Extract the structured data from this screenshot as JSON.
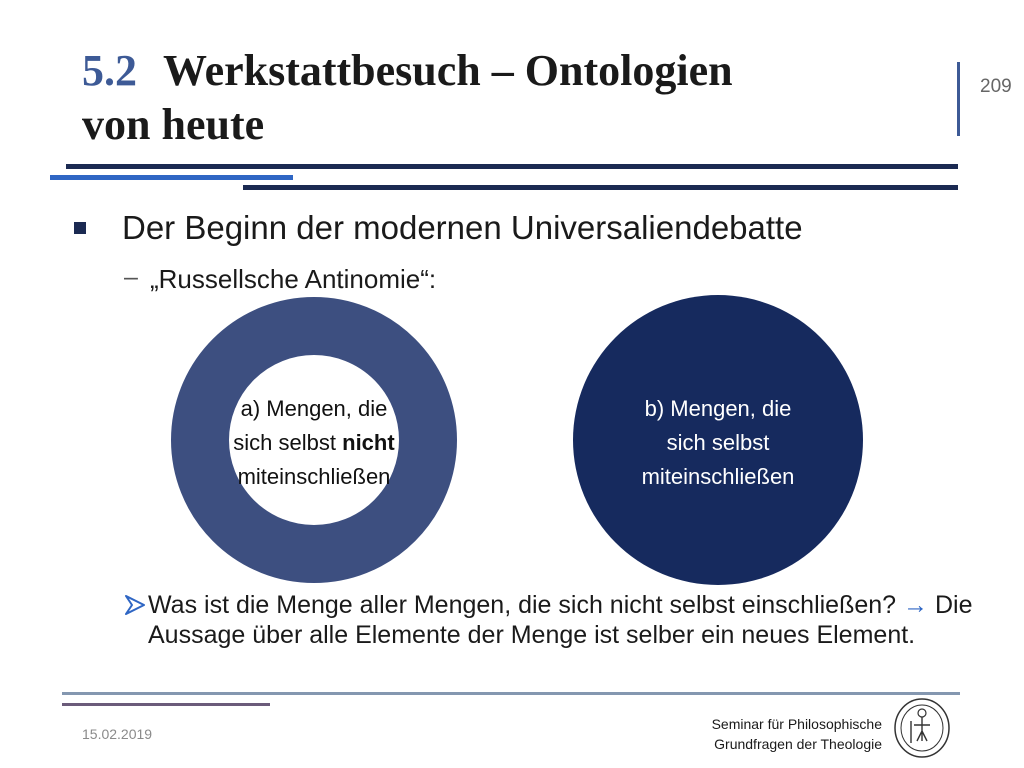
{
  "slide": {
    "section_number": "5.2",
    "title_rest_line1": "Werkstattbesuch – Ontologien",
    "title_line2": "von heute",
    "page_number": "209"
  },
  "content": {
    "bullet1": "Der Beginn der modernen Universaliendebatte",
    "sub_dash": "–",
    "sub1": "„Russellsche Antinomie“:",
    "circle_a": {
      "prefix": "a) Mengen, die",
      "mid": "sich selbst ",
      "bold": "nicht",
      "suffix": "miteinschließen"
    },
    "circle_b": {
      "line1": "b) Mengen, die",
      "line2": "sich selbst",
      "line3": "miteinschließen"
    },
    "question_part1": "Was ist die Menge aller Mengen, die sich nicht selbst einschließen? ",
    "question_arrow": "→",
    "question_part2": " Die Aussage über alle Elemente der Menge ist selber ein neues Element."
  },
  "footer": {
    "date": "15.02.2019",
    "institution_line1": "Seminar für Philosophische",
    "institution_line2": "Grundfragen der Theologie"
  },
  "colors": {
    "accent_blue": "#3d5a96",
    "dark_navy": "#1b2a52",
    "ring_blue": "#3d4f80",
    "circle_b": "#162a5e",
    "arrow_blue": "#2f66c4"
  }
}
